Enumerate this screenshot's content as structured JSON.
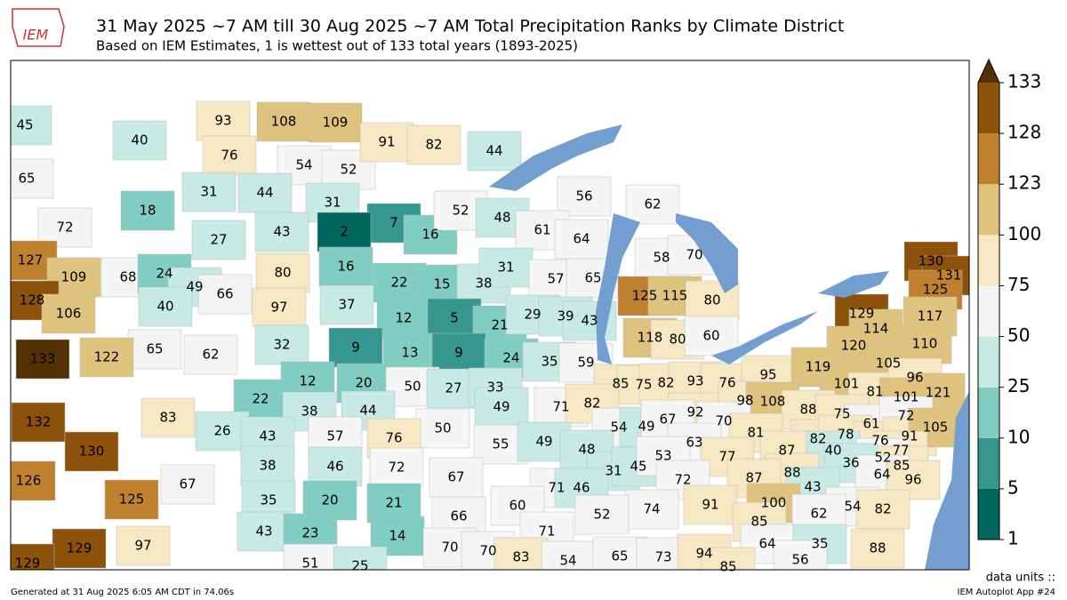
{
  "map": {
    "logo": "IEM",
    "title": "31 May 2025 ~7 AM till 30 Aug 2025 ~7 AM Total Precipitation Ranks by Climate District",
    "subtitle": "Based on IEM Estimates, 1 is wettest out of 133 total years (1893-2025)",
    "units_label": "data units ::",
    "footer_left": "Generated at 31 Aug 2025 6:05 AM CDT in 74.06s",
    "footer_right": "IEM Autoplot App #24",
    "colorbar": {
      "levels": [
        1,
        5,
        10,
        25,
        50,
        75,
        100,
        123,
        128,
        133
      ],
      "colors": [
        "#01665e",
        "#35978f",
        "#80cdc1",
        "#c7eae5",
        "#f5f5f5",
        "#f6e8c3",
        "#dfc27d",
        "#bf812d",
        "#8c510a",
        "#543005"
      ]
    },
    "district_ranks": [
      45,
      40,
      65,
      72,
      18,
      93,
      108,
      109,
      76,
      54,
      52,
      91,
      82,
      44,
      31,
      44,
      31,
      56,
      7,
      16,
      52,
      48,
      62,
      27,
      43,
      2,
      61,
      64,
      127,
      109,
      68,
      24,
      16,
      80,
      58,
      70,
      49,
      66,
      40,
      22,
      15,
      38,
      31,
      57,
      65,
      128,
      106,
      97,
      37,
      125,
      115,
      80,
      12,
      5,
      21,
      29,
      39,
      43,
      130,
      131,
      125,
      129,
      114,
      117,
      65,
      62,
      32,
      9,
      13,
      9,
      24,
      35,
      59,
      118,
      80,
      60,
      120,
      110,
      133,
      122,
      12,
      20,
      50,
      27,
      33,
      85,
      75,
      82,
      93,
      76,
      95,
      119,
      105,
      101,
      81,
      96,
      121,
      22,
      38,
      44,
      49,
      71,
      82,
      92,
      98,
      108,
      101,
      88,
      75,
      61,
      72,
      132,
      83,
      26,
      50,
      54,
      49,
      67,
      70,
      81,
      82,
      78,
      76,
      91,
      105,
      130,
      43,
      57,
      76,
      55,
      49,
      48,
      63,
      87,
      40,
      77,
      38,
      46,
      72,
      67,
      31,
      45,
      53,
      77,
      52,
      85,
      36,
      126,
      67,
      71,
      46,
      72,
      88,
      87,
      64,
      96,
      35,
      20,
      21,
      125,
      43,
      66,
      60,
      74,
      91,
      100,
      85,
      54,
      82,
      52,
      62,
      43,
      23,
      14,
      71,
      129,
      97,
      70,
      70,
      83,
      64,
      35,
      88,
      129,
      51,
      25,
      54,
      65,
      73,
      94,
      56,
      85
    ]
  }
}
